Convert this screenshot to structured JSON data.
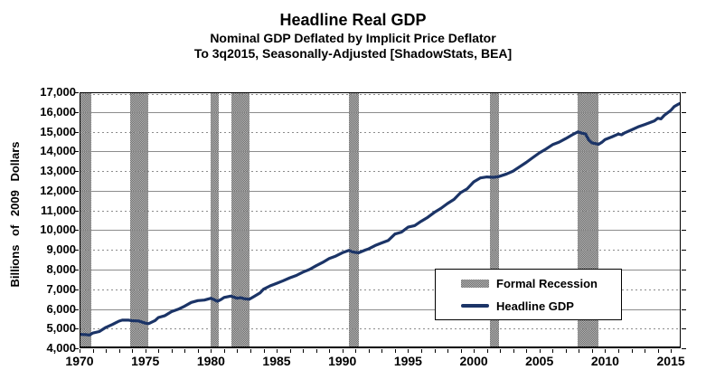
{
  "colors": {
    "line": "#1B3467",
    "grid": "#8C8C8C",
    "band_dark": "#6E6E6E",
    "band_light": "#B5B5B5",
    "axis": "#000000",
    "background": "#FFFFFF"
  },
  "chart_data": {
    "type": "line",
    "title": "Headline Real GDP",
    "subtitle_line1": "Nominal GDP Deflated by Implicit Price Deflator",
    "subtitle_line2": "To 3q2015, Seasonally-Adjusted [ShadowStats, BEA]",
    "ylabel": "Billions of 2009 Dollars",
    "xlabel": "",
    "xlim": [
      1970,
      2015.75
    ],
    "ylim": [
      4000,
      17000
    ],
    "x_minor_tick_interval": 1,
    "x_ticks": [
      1970,
      1975,
      1980,
      1985,
      1990,
      1995,
      2000,
      2005,
      2010,
      2015
    ],
    "x_tick_labels": [
      "1970",
      "1975",
      "1980",
      "1985",
      "1990",
      "1995",
      "2000",
      "2005",
      "2010",
      "2015"
    ],
    "y_tick_values": [
      4000,
      5000,
      6000,
      7000,
      8000,
      9000,
      10000,
      11000,
      12000,
      13000,
      14000,
      15000,
      16000,
      17000
    ],
    "y_tick_labels": [
      "4,000",
      "5,000",
      "6,000",
      "7,000",
      "8,000",
      "9,000",
      "10,000",
      "11,000",
      "12,000",
      "13,000",
      "14,000",
      "15,000",
      "16,000",
      "17,000"
    ],
    "grid": {
      "solid_thousands": "even",
      "dotted_thousands": "odd"
    },
    "legend": {
      "position": "inside-lower-right",
      "entries": [
        {
          "label": "Formal Recession",
          "swatch": "gray-pattern"
        },
        {
          "label": "Headline GDP",
          "swatch": "navy-line"
        }
      ]
    },
    "recession_bands": {
      "name": "Formal Recession",
      "intervals": [
        [
          1970.0,
          1970.92
        ],
        [
          1973.83,
          1975.25
        ],
        [
          1980.0,
          1980.58
        ],
        [
          1981.58,
          1982.92
        ],
        [
          1990.5,
          1991.25
        ],
        [
          2001.2,
          2001.9
        ],
        [
          2007.92,
          2009.5
        ]
      ]
    },
    "series": [
      {
        "name": "Headline GDP",
        "type": "line",
        "color": "#1B3467",
        "units": "billions of 2009 dollars",
        "points": [
          [
            1970.0,
            4710
          ],
          [
            1970.25,
            4700
          ],
          [
            1970.5,
            4695
          ],
          [
            1970.75,
            4670
          ],
          [
            1971.0,
            4770
          ],
          [
            1971.5,
            4850
          ],
          [
            1972.0,
            5060
          ],
          [
            1972.5,
            5210
          ],
          [
            1973.0,
            5380
          ],
          [
            1973.25,
            5430
          ],
          [
            1973.75,
            5430
          ],
          [
            1974.0,
            5400
          ],
          [
            1974.5,
            5385
          ],
          [
            1975.0,
            5275
          ],
          [
            1975.25,
            5250
          ],
          [
            1975.75,
            5410
          ],
          [
            1976.0,
            5560
          ],
          [
            1976.5,
            5660
          ],
          [
            1977.0,
            5860
          ],
          [
            1977.5,
            5980
          ],
          [
            1978.0,
            6140
          ],
          [
            1978.5,
            6330
          ],
          [
            1979.0,
            6420
          ],
          [
            1979.5,
            6450
          ],
          [
            1980.0,
            6540
          ],
          [
            1980.5,
            6390
          ],
          [
            1980.75,
            6470
          ],
          [
            1981.0,
            6580
          ],
          [
            1981.5,
            6650
          ],
          [
            1982.0,
            6540
          ],
          [
            1982.25,
            6570
          ],
          [
            1982.5,
            6520
          ],
          [
            1982.92,
            6490
          ],
          [
            1983.25,
            6620
          ],
          [
            1983.75,
            6820
          ],
          [
            1984.0,
            7000
          ],
          [
            1984.5,
            7170
          ],
          [
            1985.0,
            7300
          ],
          [
            1985.5,
            7430
          ],
          [
            1986.0,
            7580
          ],
          [
            1986.5,
            7700
          ],
          [
            1987.0,
            7870
          ],
          [
            1987.5,
            8000
          ],
          [
            1988.0,
            8190
          ],
          [
            1988.5,
            8360
          ],
          [
            1989.0,
            8560
          ],
          [
            1989.5,
            8680
          ],
          [
            1990.0,
            8850
          ],
          [
            1990.5,
            8970
          ],
          [
            1990.75,
            8900
          ],
          [
            1991.0,
            8870
          ],
          [
            1991.25,
            8850
          ],
          [
            1991.75,
            8990
          ],
          [
            1992.0,
            9050
          ],
          [
            1992.5,
            9220
          ],
          [
            1993.0,
            9350
          ],
          [
            1993.5,
            9480
          ],
          [
            1994.0,
            9800
          ],
          [
            1994.5,
            9900
          ],
          [
            1995.0,
            10150
          ],
          [
            1995.5,
            10230
          ],
          [
            1996.0,
            10450
          ],
          [
            1996.5,
            10650
          ],
          [
            1997.0,
            10900
          ],
          [
            1997.5,
            11100
          ],
          [
            1998.0,
            11350
          ],
          [
            1998.5,
            11560
          ],
          [
            1999.0,
            11900
          ],
          [
            1999.5,
            12100
          ],
          [
            2000.0,
            12450
          ],
          [
            2000.5,
            12650
          ],
          [
            2001.0,
            12700
          ],
          [
            2001.5,
            12680
          ],
          [
            2001.9,
            12720
          ],
          [
            2002.5,
            12850
          ],
          [
            2003.0,
            13000
          ],
          [
            2003.5,
            13220
          ],
          [
            2004.0,
            13440
          ],
          [
            2004.5,
            13690
          ],
          [
            2005.0,
            13920
          ],
          [
            2005.5,
            14120
          ],
          [
            2006.0,
            14340
          ],
          [
            2006.5,
            14470
          ],
          [
            2007.0,
            14650
          ],
          [
            2007.5,
            14840
          ],
          [
            2007.92,
            14990
          ],
          [
            2008.25,
            14920
          ],
          [
            2008.5,
            14890
          ],
          [
            2008.75,
            14580
          ],
          [
            2009.0,
            14430
          ],
          [
            2009.5,
            14360
          ],
          [
            2009.75,
            14460
          ],
          [
            2010.0,
            14600
          ],
          [
            2010.5,
            14730
          ],
          [
            2011.0,
            14880
          ],
          [
            2011.25,
            14840
          ],
          [
            2011.5,
            14940
          ],
          [
            2012.0,
            15090
          ],
          [
            2012.5,
            15240
          ],
          [
            2013.0,
            15360
          ],
          [
            2013.25,
            15420
          ],
          [
            2013.75,
            15550
          ],
          [
            2014.0,
            15680
          ],
          [
            2014.25,
            15650
          ],
          [
            2014.5,
            15830
          ],
          [
            2015.0,
            16080
          ],
          [
            2015.25,
            16270
          ],
          [
            2015.5,
            16370
          ],
          [
            2015.75,
            16450
          ]
        ]
      }
    ]
  }
}
